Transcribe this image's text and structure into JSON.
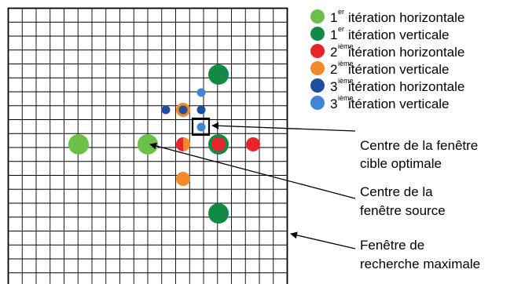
{
  "colors": {
    "iter1_horizontal": "#6cc04a",
    "iter1_vertical": "#138a43",
    "iter2_horizontal": "#e8232a",
    "iter2_vertical": "#f28a2c",
    "iter3_horizontal": "#1f4ea1",
    "iter3_vertical": "#3f86d6",
    "grid": "#000000"
  },
  "grid": {
    "cells": 20
  },
  "legend": [
    {
      "key": "iter1_horizontal",
      "num": "1",
      "sup": "er",
      "text": "itération horizontale"
    },
    {
      "key": "iter1_vertical",
      "num": "1",
      "sup": "er",
      "text": "itération verticale"
    },
    {
      "key": "iter2_horizontal",
      "num": "2",
      "sup": "ième",
      "text": "itération horizontale"
    },
    {
      "key": "iter2_vertical",
      "num": "2",
      "sup": "ième",
      "text": "itération verticale"
    },
    {
      "key": "iter3_horizontal",
      "num": "3",
      "sup": "ième",
      "text": "itération horizontale"
    },
    {
      "key": "iter3_vertical",
      "num": "3",
      "sup": "ième",
      "text": "itération verticale"
    }
  ],
  "annotations": {
    "optimal_target": [
      "Centre de la fenêtre",
      "cible optimale"
    ],
    "source_center": [
      "Centre de la",
      "fenêtre source"
    ],
    "max_search": [
      "Fenêtre de",
      "recherche maximale"
    ]
  }
}
